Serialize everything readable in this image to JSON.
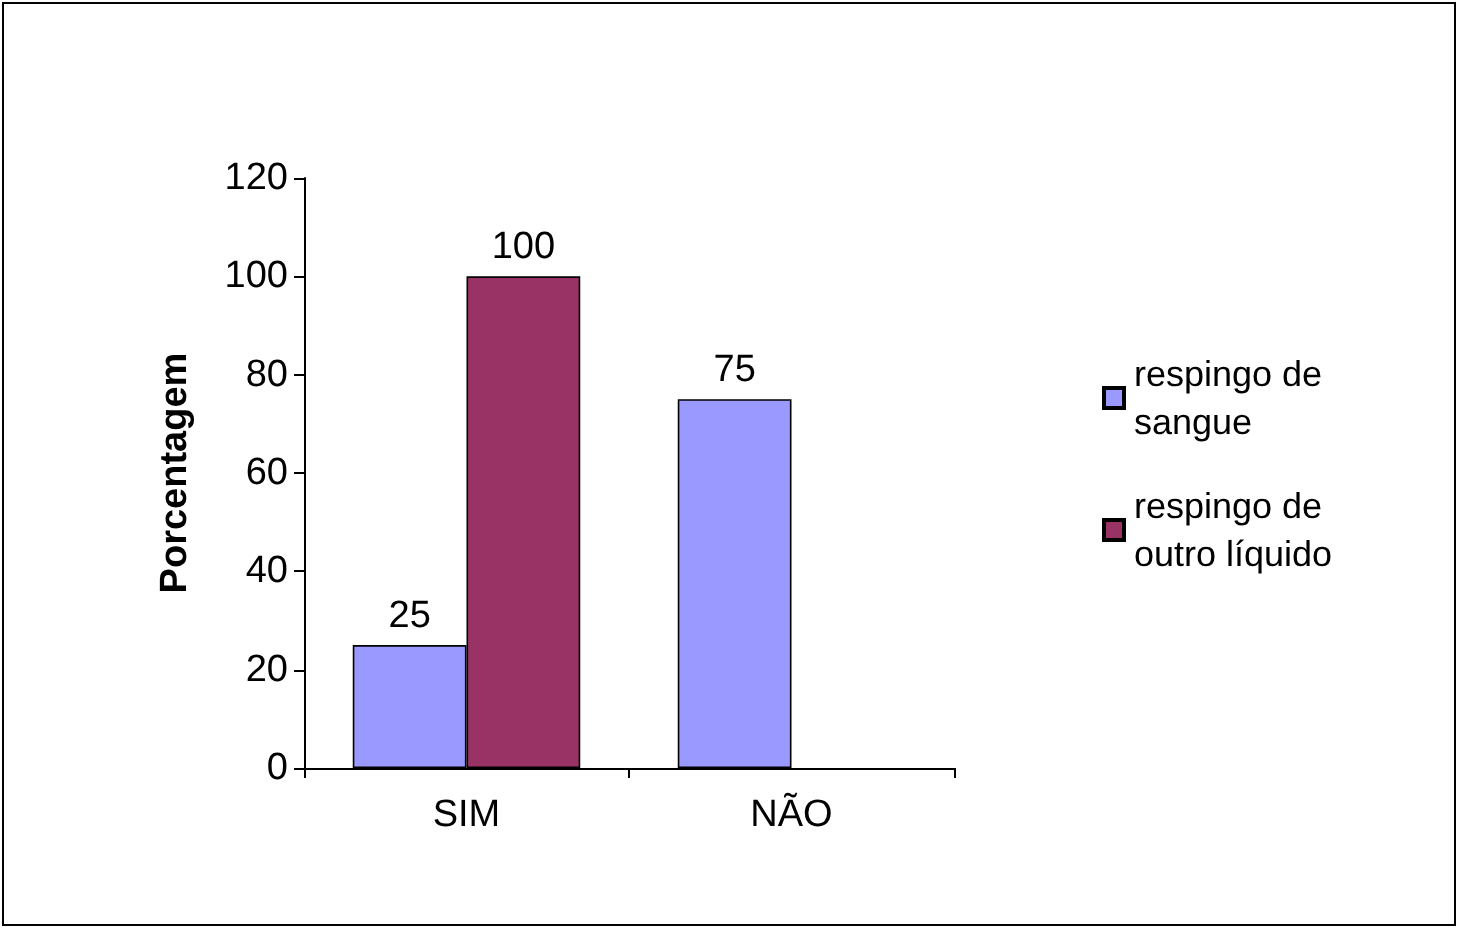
{
  "chart_data": {
    "type": "bar",
    "ylabel": "Porcentagem",
    "categories": [
      "SIM",
      "NÃO"
    ],
    "series": [
      {
        "name": "respingo de sangue",
        "color": "#9999ff",
        "values": [
          25,
          75
        ]
      },
      {
        "name": "respingo de outro líquido",
        "color": "#993366",
        "values": [
          100,
          null
        ]
      }
    ],
    "ylim": [
      0,
      120
    ],
    "yticks": [
      0,
      20,
      40,
      60,
      80,
      100,
      120
    ],
    "grid": false,
    "legend": "right",
    "data_labels": true
  }
}
